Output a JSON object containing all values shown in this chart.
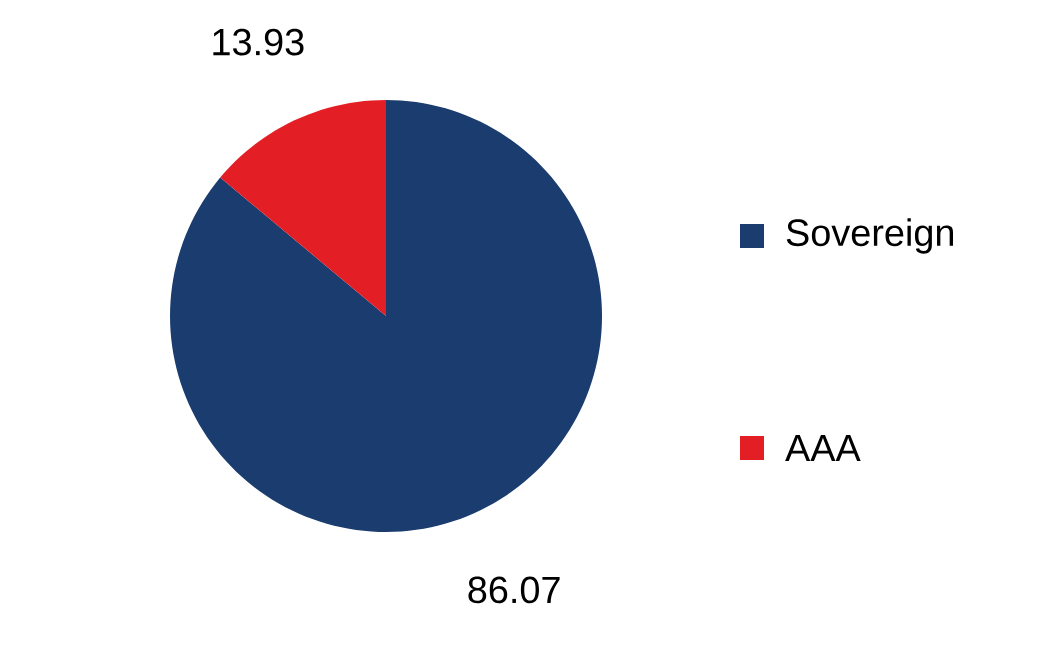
{
  "chart_data": {
    "type": "pie",
    "categories": [
      "Sovereign",
      "AAA"
    ],
    "values": [
      86.07,
      13.93
    ],
    "colors": [
      "#1a3c6e",
      "#e31e24"
    ],
    "data_labels": true,
    "legend": "right"
  }
}
